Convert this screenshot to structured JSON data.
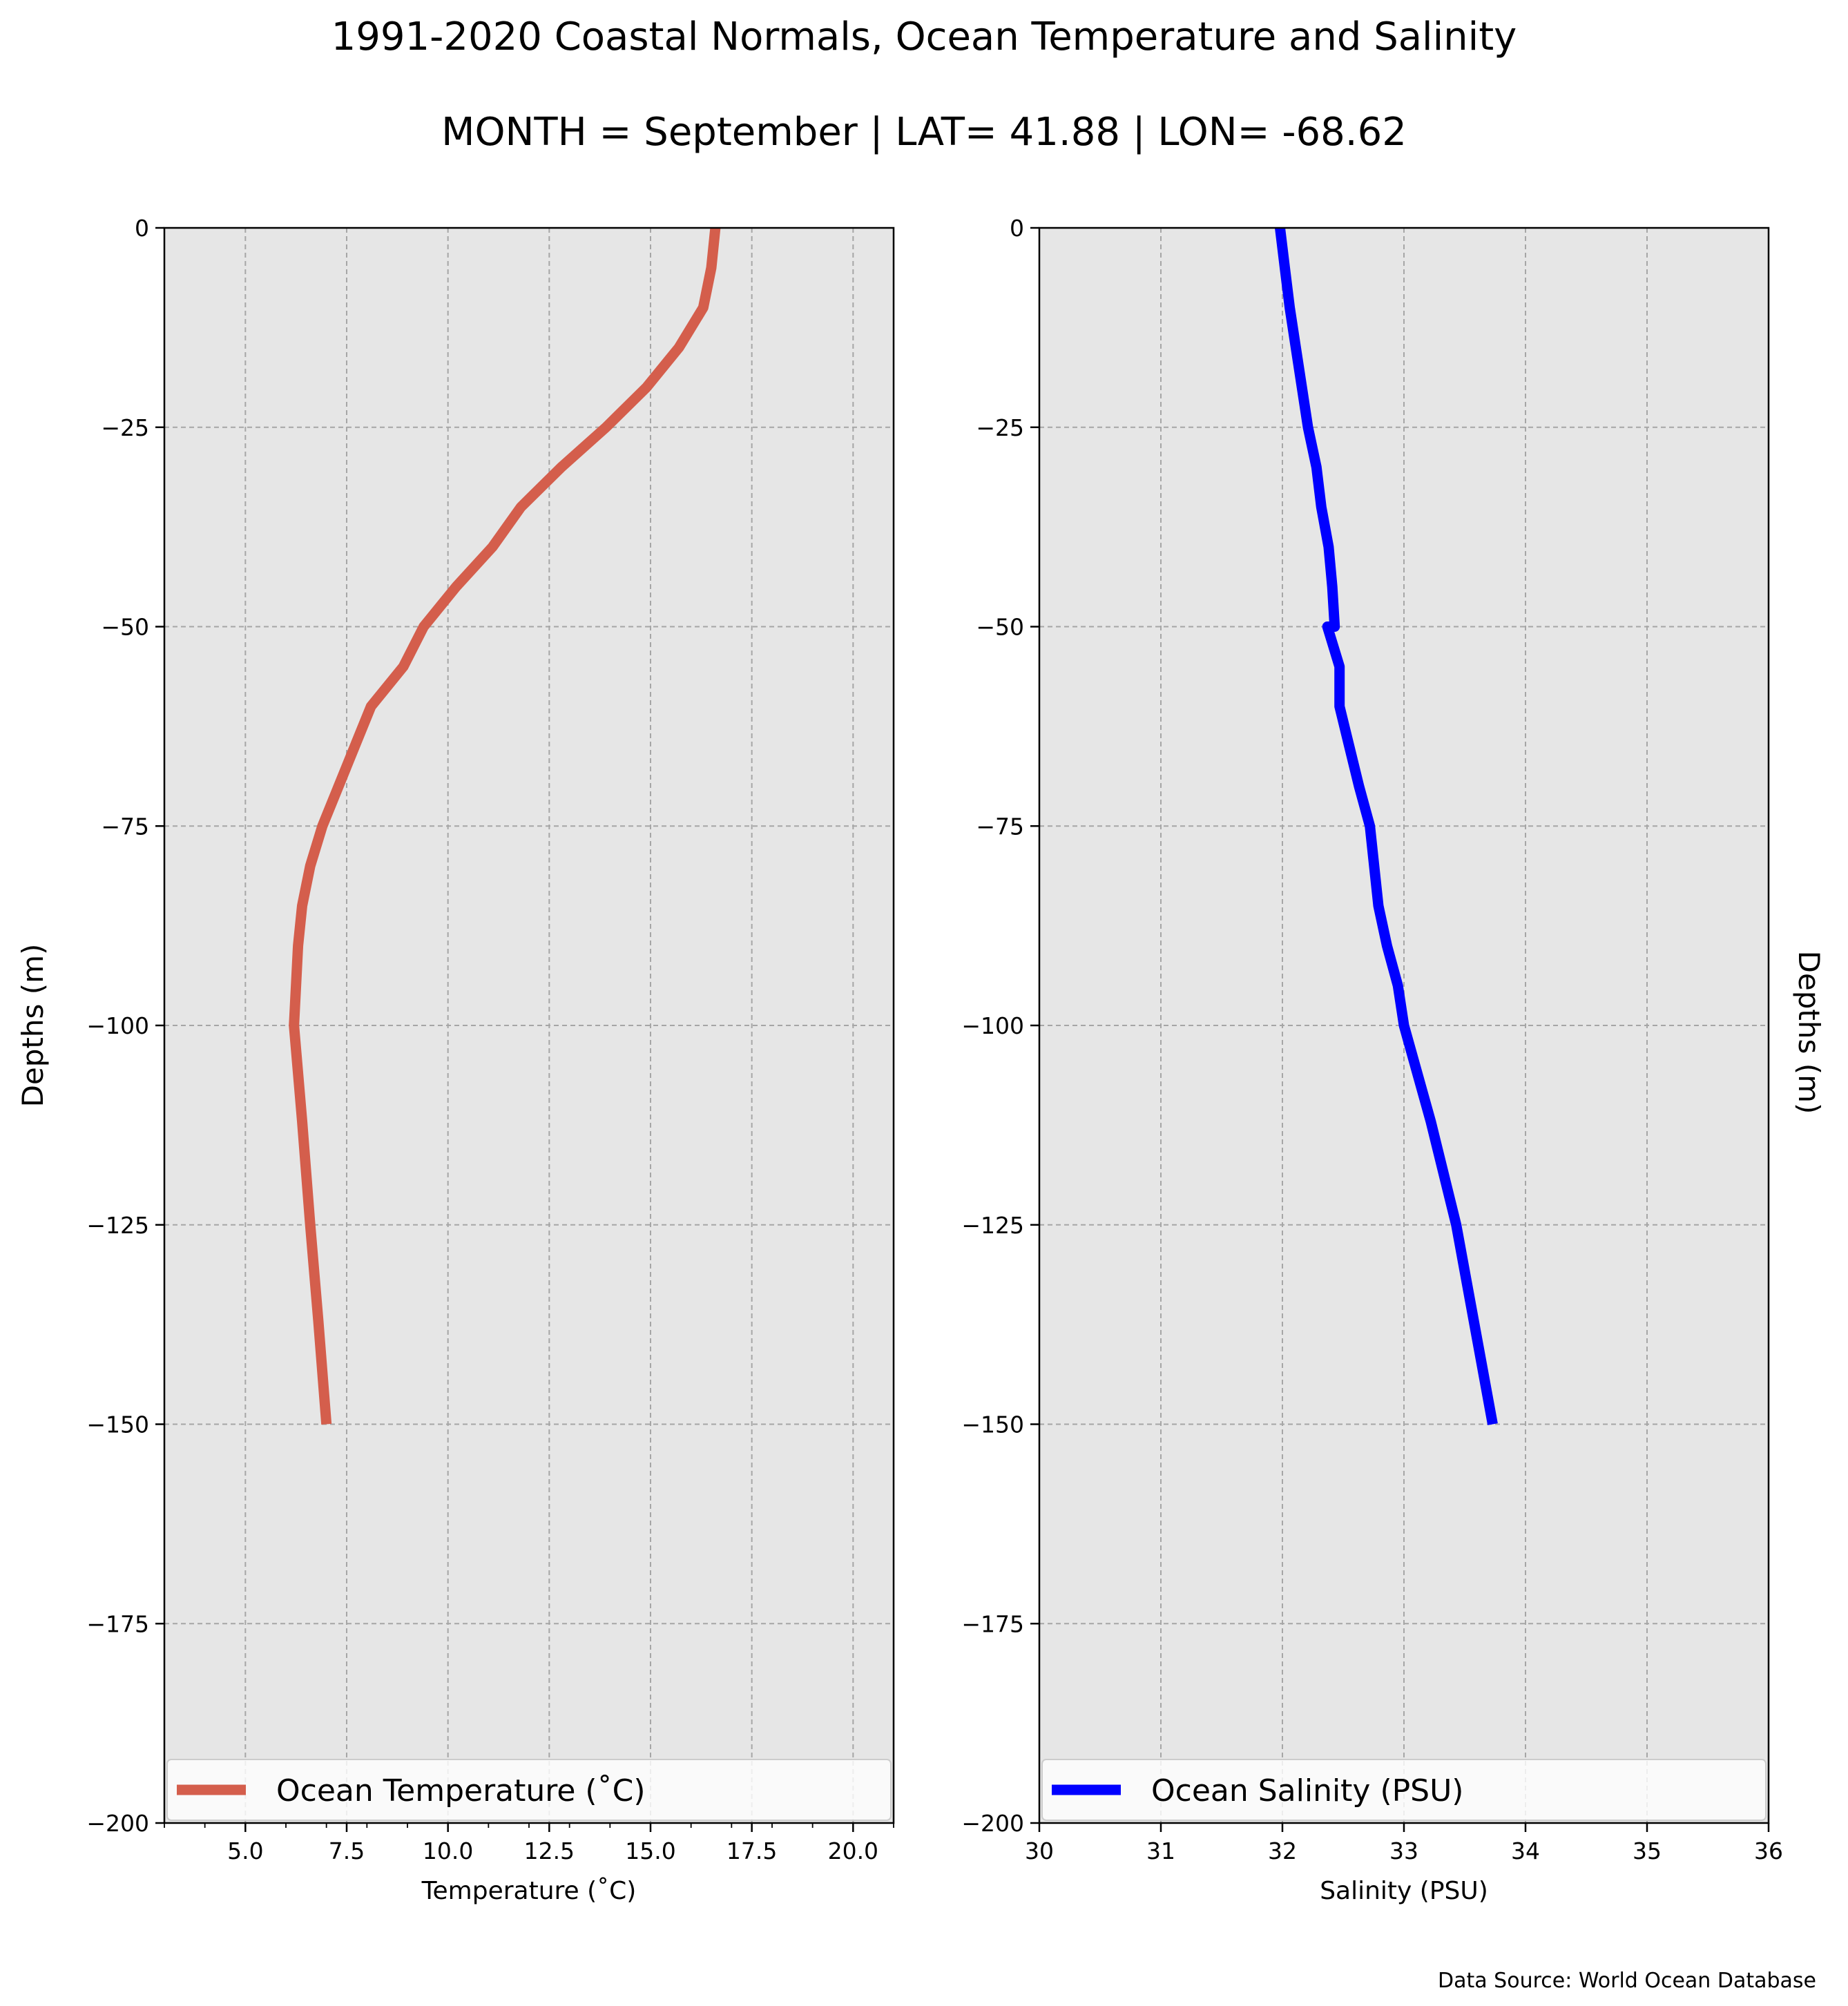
{
  "figure": {
    "title": "1991-2020 Coastal Normals, Ocean Temperature and Salinity",
    "subtitle": "MONTH = September | LAT= 41.88 | LON= -68.62",
    "footnote": "Data Source: World Ocean Database"
  },
  "colors": {
    "panel_background": "#e6e6e6",
    "grid": "#a6a6a6",
    "temperature_line": "#d45e4c",
    "salinity_line": "#0000ff"
  },
  "chart_data": [
    {
      "type": "line",
      "orientation": "vertical-profile",
      "xlabel": "Temperature ($^\\circ$C)",
      "xlabel_display": "Temperature (˚C)",
      "ylabel": "Depths (m)",
      "xlim": [
        3.0,
        21.0
      ],
      "ylim": [
        -200,
        0
      ],
      "xticks": [
        5.0,
        7.5,
        10.0,
        12.5,
        15.0,
        17.5,
        20.0
      ],
      "xtick_labels": [
        "5.0",
        "7.5",
        "10.0",
        "12.5",
        "15.0",
        "17.5",
        "20.0"
      ],
      "yticks": [
        0,
        -25,
        -50,
        -75,
        -100,
        -125,
        -150,
        -175,
        -200
      ],
      "ytick_labels": [
        "0",
        "−25",
        "−50",
        "−75",
        "−100",
        "−125",
        "−150",
        "−175",
        "−200"
      ],
      "grid": true,
      "legend": "lower center",
      "series": [
        {
          "name": "Ocean Temperature (˚C)",
          "color": "#d45e4c",
          "x": [
            16.6,
            16.5,
            16.3,
            15.7,
            14.9,
            13.9,
            12.8,
            11.8,
            11.1,
            10.2,
            9.4,
            8.9,
            8.1,
            7.7,
            7.3,
            6.9,
            6.6,
            6.4,
            6.3,
            6.2,
            6.4,
            6.6,
            6.8,
            7.0
          ],
          "y": [
            0,
            -5,
            -10,
            -15,
            -20,
            -25,
            -30,
            -35,
            -40,
            -45,
            -50,
            -55,
            -60,
            -65,
            -70,
            -75,
            -80,
            -85,
            -90,
            -100,
            -112,
            -125,
            -137,
            -150
          ]
        }
      ]
    },
    {
      "type": "line",
      "orientation": "vertical-profile",
      "xlabel": "Salinity (PSU)",
      "ylabel": "Depths (m)",
      "xlim": [
        30,
        36
      ],
      "ylim": [
        -200,
        0
      ],
      "xticks": [
        30,
        31,
        32,
        33,
        34,
        35,
        36
      ],
      "xtick_labels": [
        "30",
        "31",
        "32",
        "33",
        "34",
        "35",
        "36"
      ],
      "yticks": [
        0,
        -25,
        -50,
        -75,
        -100,
        -125,
        -150,
        -175,
        -200
      ],
      "ytick_labels": [
        "0",
        "−25",
        "−50",
        "−75",
        "−100",
        "−125",
        "−150",
        "−175",
        "−200"
      ],
      "grid": true,
      "legend": "lower center",
      "series": [
        {
          "name": "Ocean Salinity (PSU)",
          "color": "#0000ff",
          "x": [
            31.98,
            32.02,
            32.06,
            32.11,
            32.16,
            32.21,
            32.28,
            32.32,
            32.38,
            32.41,
            32.43,
            32.37,
            32.47,
            32.47,
            32.55,
            32.63,
            32.72,
            32.79,
            32.86,
            32.95,
            33.0,
            33.22,
            33.43,
            33.73
          ],
          "y": [
            0,
            -5,
            -10,
            -15,
            -20,
            -25,
            -30,
            -35,
            -40,
            -45,
            -50,
            -50,
            -55,
            -60,
            -65,
            -70,
            -75,
            -85,
            -90,
            -95,
            -100,
            -112,
            -125,
            -150
          ]
        }
      ]
    }
  ]
}
